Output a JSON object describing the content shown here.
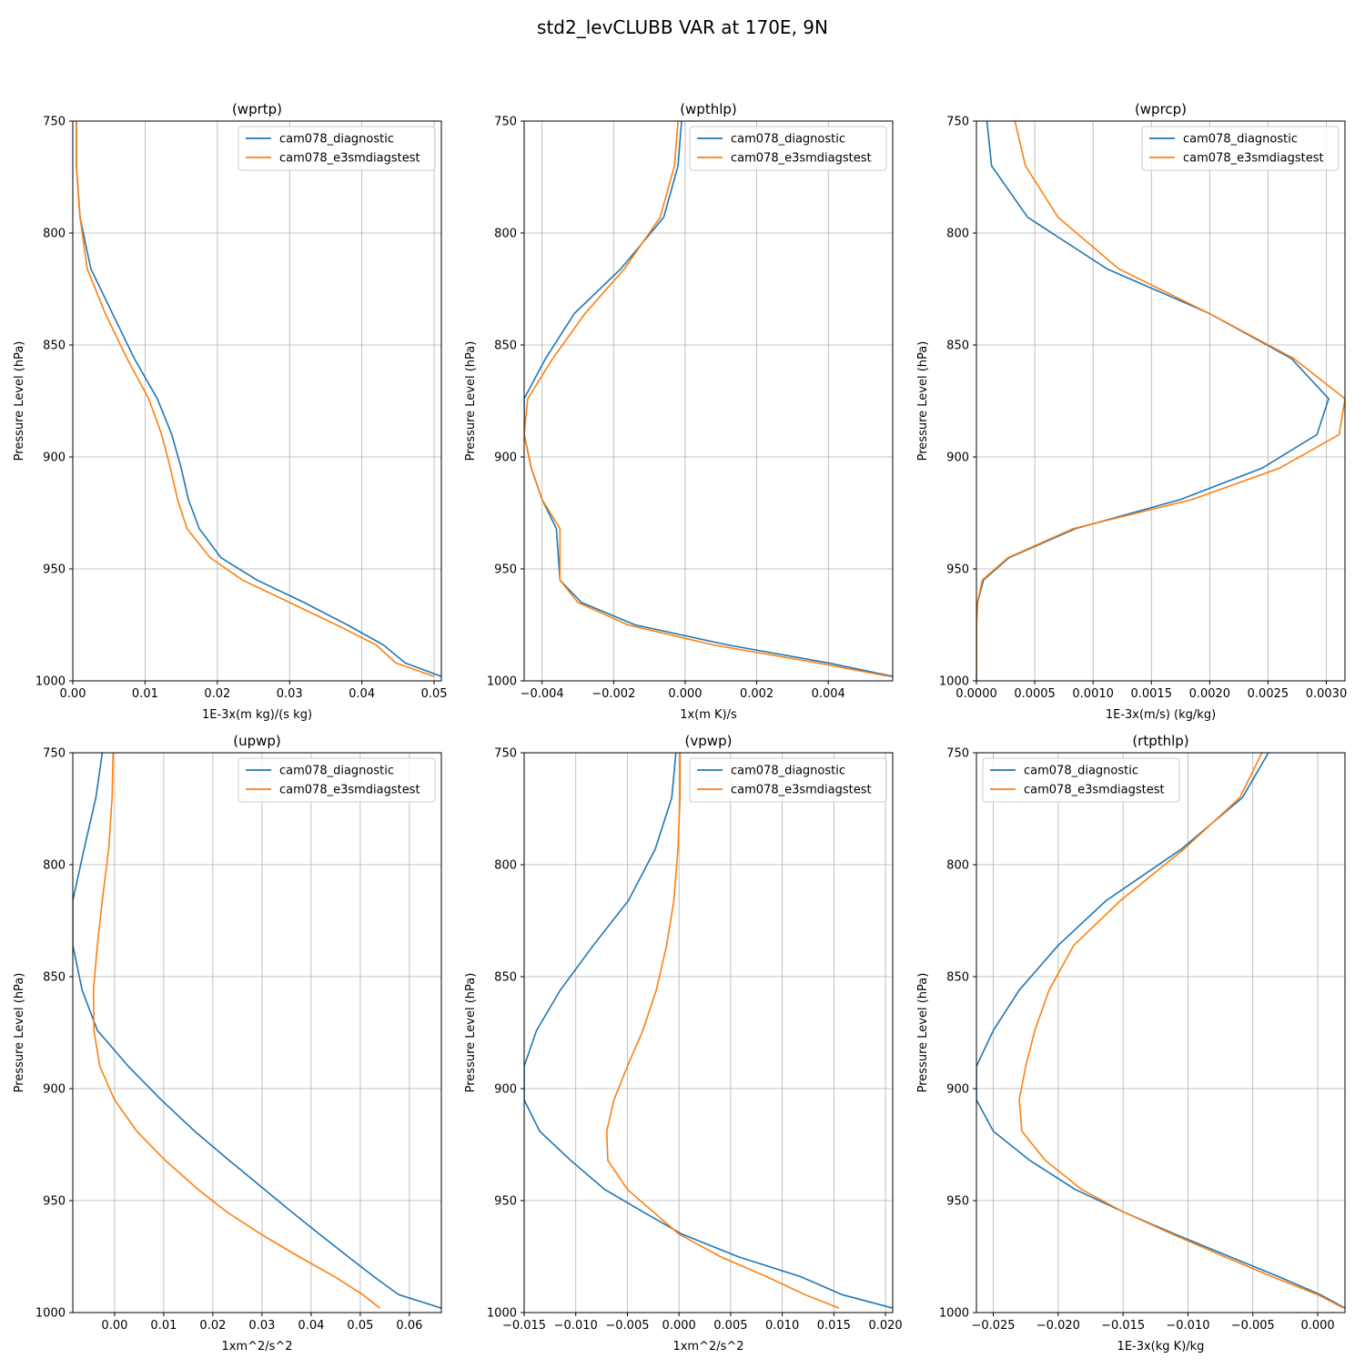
{
  "figure": {
    "suptitle": "std2_levCLUBB VAR at 170E, 9N"
  },
  "colors": {
    "series1": "#1f77b4",
    "series2": "#ff7f0e",
    "grid": "#b0b0b0",
    "frame": "#000000",
    "legend_border": "#cccccc"
  },
  "chart_data": [
    {
      "type": "line",
      "title": "(wprtp)",
      "xlabel": "1E-3x(m kg)/(s kg)",
      "ylabel": "Pressure Level (hPa)",
      "xlim": [
        0.0,
        0.051
      ],
      "ylim": [
        1000,
        750
      ],
      "xticks": [
        0.0,
        0.01,
        0.02,
        0.03,
        0.04,
        0.05
      ],
      "xticklabels": [
        "0.00",
        "0.01",
        "0.02",
        "0.03",
        "0.04",
        "0.05"
      ],
      "yticks": [
        750,
        800,
        850,
        900,
        950,
        1000
      ],
      "yticklabels": [
        "750",
        "800",
        "850",
        "900",
        "950",
        "1000"
      ],
      "legend_position": "top-right",
      "series": [
        {
          "name": "cam078_diagnostic",
          "y": [
            750,
            770,
            793,
            816,
            836,
            856,
            874,
            890,
            905,
            919,
            932,
            945,
            955,
            965,
            975,
            984,
            992,
            998
          ],
          "x": [
            0.0005,
            0.0005,
            0.001,
            0.0025,
            0.0055,
            0.0085,
            0.0117,
            0.0137,
            0.015,
            0.016,
            0.0175,
            0.0205,
            0.0255,
            0.032,
            0.038,
            0.043,
            0.046,
            0.051
          ]
        },
        {
          "name": "cam078_e3smdiagstest",
          "y": [
            750,
            770,
            793,
            816,
            836,
            856,
            874,
            890,
            905,
            919,
            932,
            945,
            955,
            965,
            975,
            984,
            992,
            998
          ],
          "x": [
            0.0005,
            0.0005,
            0.001,
            0.002,
            0.0045,
            0.0075,
            0.0105,
            0.0123,
            0.0135,
            0.0145,
            0.0158,
            0.019,
            0.0235,
            0.03,
            0.0365,
            0.042,
            0.0447,
            0.05
          ]
        }
      ]
    },
    {
      "type": "line",
      "title": "(wpthlp)",
      "xlabel": "1x(m K)/s",
      "ylabel": "Pressure Level (hPa)",
      "xlim": [
        -0.0045,
        0.0058
      ],
      "ylim": [
        1000,
        750
      ],
      "xticks": [
        -0.004,
        -0.002,
        0.0,
        0.002,
        0.004
      ],
      "xticklabels": [
        "−0.004",
        "−0.002",
        "0.000",
        "0.002",
        "0.004"
      ],
      "yticks": [
        750,
        800,
        850,
        900,
        950,
        1000
      ],
      "yticklabels": [
        "750",
        "800",
        "850",
        "900",
        "950",
        "1000"
      ],
      "legend_position": "top-right",
      "series": [
        {
          "name": "cam078_diagnostic",
          "y": [
            750,
            770,
            793,
            816,
            836,
            856,
            874,
            890,
            905,
            919,
            932,
            955,
            965,
            975,
            984,
            992,
            998
          ],
          "x": [
            -0.0001,
            -0.0002,
            -0.0006,
            -0.0018,
            -0.0031,
            -0.0039,
            -0.0045,
            -0.0045,
            -0.0043,
            -0.004,
            -0.0036,
            -0.0035,
            -0.0029,
            -0.0014,
            0.0012,
            0.004,
            0.0058
          ]
        },
        {
          "name": "cam078_e3smdiagstest",
          "y": [
            750,
            770,
            793,
            816,
            836,
            856,
            874,
            890,
            905,
            919,
            932,
            955,
            965,
            975,
            984,
            992,
            998
          ],
          "x": [
            -0.0002,
            -0.0003,
            -0.0007,
            -0.0017,
            -0.0028,
            -0.0037,
            -0.0044,
            -0.0045,
            -0.0043,
            -0.004,
            -0.0035,
            -0.0035,
            -0.003,
            -0.0016,
            0.0008,
            0.0037,
            0.0057
          ]
        }
      ]
    },
    {
      "type": "line",
      "title": "(wprcp)",
      "xlabel": "1E-3x(m/s) (kg/kg)",
      "ylabel": "Pressure Level (hPa)",
      "xlim": [
        0.0,
        0.00316
      ],
      "ylim": [
        1000,
        750
      ],
      "xticks": [
        0.0,
        0.0005,
        0.001,
        0.0015,
        0.002,
        0.0025,
        0.003
      ],
      "xticklabels": [
        "0.0000",
        "0.0005",
        "0.0010",
        "0.0015",
        "0.0020",
        "0.0025",
        "0.0030"
      ],
      "yticks": [
        750,
        800,
        850,
        900,
        950,
        1000
      ],
      "yticklabels": [
        "750",
        "800",
        "850",
        "900",
        "950",
        "1000"
      ],
      "legend_position": "top-right",
      "series": [
        {
          "name": "cam078_diagnostic",
          "y": [
            750,
            770,
            793,
            816,
            836,
            856,
            874,
            890,
            905,
            919,
            932,
            945,
            955,
            965,
            975,
            1000
          ],
          "x": [
            9e-05,
            0.00013,
            0.00044,
            0.00112,
            0.002,
            0.0027,
            0.00302,
            0.00292,
            0.00245,
            0.00175,
            0.00085,
            0.00028,
            6e-05,
            1e-05,
            0.0,
            0.0
          ]
        },
        {
          "name": "cam078_e3smdiagstest",
          "y": [
            750,
            770,
            793,
            816,
            836,
            856,
            874,
            890,
            905,
            919,
            932,
            945,
            955,
            965,
            975,
            1000
          ],
          "x": [
            0.00033,
            0.00042,
            0.0007,
            0.00122,
            0.002,
            0.00272,
            0.00316,
            0.00311,
            0.0026,
            0.00185,
            0.00083,
            0.00027,
            5e-05,
            1e-05,
            0.0,
            0.0
          ]
        }
      ]
    },
    {
      "type": "line",
      "title": "(upwp)",
      "xlabel": "1xm^2/s^2",
      "ylabel": "Pressure Level (hPa)",
      "xlim": [
        -0.0085,
        0.0665
      ],
      "ylim": [
        1000,
        750
      ],
      "xticks": [
        0.0,
        0.01,
        0.02,
        0.03,
        0.04,
        0.05,
        0.06
      ],
      "xticklabels": [
        "0.00",
        "0.01",
        "0.02",
        "0.03",
        "0.04",
        "0.05",
        "0.06"
      ],
      "yticks": [
        750,
        800,
        850,
        900,
        950,
        1000
      ],
      "yticklabels": [
        "750",
        "800",
        "850",
        "900",
        "950",
        "1000"
      ],
      "legend_position": "top-right",
      "series": [
        {
          "name": "cam078_diagnostic",
          "y": [
            750,
            770,
            793,
            816,
            836,
            856,
            874,
            890,
            905,
            919,
            932,
            945,
            955,
            965,
            975,
            984,
            992,
            998
          ],
          "x": [
            -0.0025,
            -0.0038,
            -0.0062,
            -0.0085,
            -0.0085,
            -0.0066,
            -0.0035,
            0.0028,
            0.0095,
            0.0163,
            0.0233,
            0.0305,
            0.036,
            0.0417,
            0.0475,
            0.0528,
            0.0578,
            0.0665
          ]
        },
        {
          "name": "cam078_e3smdiagstest",
          "y": [
            750,
            770,
            793,
            816,
            836,
            856,
            874,
            890,
            905,
            919,
            932,
            945,
            955,
            965,
            975,
            984,
            992,
            998
          ],
          "x": [
            -0.0003,
            -0.0005,
            -0.0012,
            -0.0025,
            -0.0035,
            -0.0043,
            -0.0042,
            -0.003,
            0.0,
            0.0045,
            0.0103,
            0.017,
            0.0228,
            0.0298,
            0.0375,
            0.0448,
            0.0505,
            0.054
          ]
        }
      ]
    },
    {
      "type": "line",
      "title": "(vpwp)",
      "xlabel": "1xm^2/s^2",
      "ylabel": "Pressure Level (hPa)",
      "xlim": [
        -0.015,
        0.0207
      ],
      "ylim": [
        1000,
        750
      ],
      "xticks": [
        -0.015,
        -0.01,
        -0.005,
        0.0,
        0.005,
        0.01,
        0.015,
        0.02
      ],
      "xticklabels": [
        "−0.015",
        "−0.010",
        "−0.005",
        "0.000",
        "0.005",
        "0.010",
        "0.015",
        "0.020"
      ],
      "yticks": [
        750,
        800,
        850,
        900,
        950,
        1000
      ],
      "yticklabels": [
        "750",
        "800",
        "850",
        "900",
        "950",
        "1000"
      ],
      "legend_position": "top-right",
      "series": [
        {
          "name": "cam078_diagnostic",
          "y": [
            750,
            770,
            793,
            816,
            836,
            856,
            874,
            890,
            905,
            919,
            932,
            945,
            955,
            965,
            975,
            984,
            992,
            998
          ],
          "x": [
            -0.0003,
            -0.0007,
            -0.0023,
            -0.0049,
            -0.0083,
            -0.0115,
            -0.0138,
            -0.015,
            -0.015,
            -0.0135,
            -0.0105,
            -0.0072,
            -0.0035,
            0.0003,
            0.0057,
            0.0118,
            0.0158,
            0.0207
          ]
        },
        {
          "name": "cam078_e3smdiagstest",
          "y": [
            750,
            770,
            793,
            816,
            836,
            856,
            874,
            890,
            905,
            919,
            932,
            945,
            955,
            965,
            975,
            984,
            992,
            998
          ],
          "x": [
            0.0001,
            0.0001,
            -0.0001,
            -0.0005,
            -0.0012,
            -0.0022,
            -0.0035,
            -0.005,
            -0.0063,
            -0.007,
            -0.0069,
            -0.005,
            -0.0025,
            0.0,
            0.004,
            0.0085,
            0.0122,
            0.0155
          ]
        }
      ]
    },
    {
      "type": "line",
      "title": "(rtpthlp)",
      "xlabel": "1E-3x(kg K)/kg",
      "ylabel": "Pressure Level (hPa)",
      "xlim": [
        -0.0263,
        0.0021
      ],
      "ylim": [
        1000,
        750
      ],
      "xticks": [
        -0.025,
        -0.02,
        -0.015,
        -0.01,
        -0.005,
        0.0
      ],
      "xticklabels": [
        "−0.025",
        "−0.020",
        "−0.015",
        "−0.010",
        "−0.005",
        "0.000"
      ],
      "yticks": [
        750,
        800,
        850,
        900,
        950,
        1000
      ],
      "yticklabels": [
        "750",
        "800",
        "850",
        "900",
        "950",
        "1000"
      ],
      "legend_position": "top-left",
      "series": [
        {
          "name": "cam078_diagnostic",
          "y": [
            750,
            770,
            793,
            816,
            836,
            856,
            874,
            890,
            905,
            919,
            932,
            945,
            955,
            965,
            975,
            984,
            992,
            998
          ],
          "x": [
            -0.0038,
            -0.0058,
            -0.0105,
            -0.0163,
            -0.02,
            -0.023,
            -0.025,
            -0.0263,
            -0.0263,
            -0.025,
            -0.0222,
            -0.0187,
            -0.015,
            -0.011,
            -0.0068,
            -0.003,
            0.0002,
            0.0021
          ]
        },
        {
          "name": "cam078_e3smdiagstest",
          "y": [
            750,
            770,
            793,
            816,
            836,
            856,
            874,
            890,
            905,
            919,
            932,
            945,
            955,
            965,
            975,
            984,
            992,
            998
          ],
          "x": [
            -0.0043,
            -0.006,
            -0.0103,
            -0.0152,
            -0.0188,
            -0.0207,
            -0.0218,
            -0.0225,
            -0.023,
            -0.0228,
            -0.021,
            -0.0182,
            -0.015,
            -0.0112,
            -0.0072,
            -0.0035,
            0.0,
            0.002
          ]
        }
      ]
    }
  ]
}
